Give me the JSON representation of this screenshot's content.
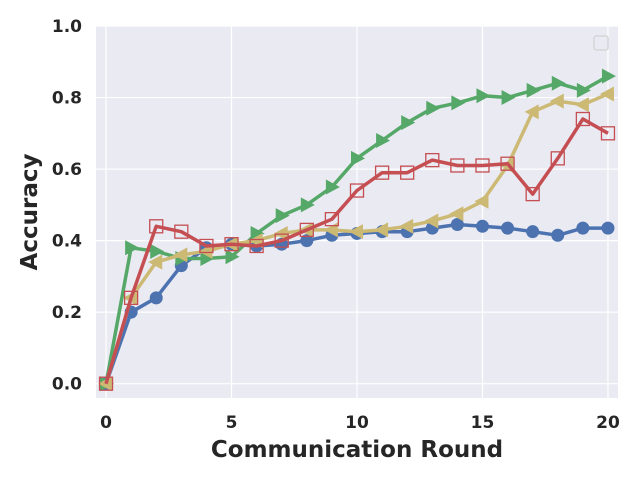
{
  "chart_data": {
    "type": "line",
    "xlabel": "Communication Round",
    "ylabel": "Accuracy",
    "xlim": [
      -0.4,
      20.4
    ],
    "ylim": [
      -0.04,
      1.0
    ],
    "xticks": [
      "0",
      "5",
      "10",
      "15",
      "20"
    ],
    "yticks": [
      "0.0",
      "0.2",
      "0.4",
      "0.6",
      "0.8",
      "1.0"
    ],
    "grid": true,
    "legend": "top-right (empty)",
    "x": [
      0,
      1,
      2,
      3,
      4,
      5,
      6,
      7,
      8,
      9,
      10,
      11,
      12,
      13,
      14,
      15,
      16,
      17,
      18,
      19,
      20
    ],
    "series": [
      {
        "color": "#4c72b0",
        "marker": "circle",
        "values": [
          0.0,
          0.2,
          0.24,
          0.33,
          0.38,
          0.39,
          0.385,
          0.39,
          0.4,
          0.415,
          0.42,
          0.425,
          0.425,
          0.435,
          0.445,
          0.44,
          0.435,
          0.425,
          0.415,
          0.435,
          0.435
        ]
      },
      {
        "color": "#55a868",
        "marker": "triangle-right",
        "values": [
          0.0,
          0.38,
          0.37,
          0.35,
          0.35,
          0.355,
          0.42,
          0.47,
          0.5,
          0.55,
          0.63,
          0.68,
          0.73,
          0.77,
          0.785,
          0.805,
          0.8,
          0.82,
          0.84,
          0.82,
          0.86
        ]
      },
      {
        "color": "#ccb974",
        "marker": "triangle-left",
        "values": [
          0.0,
          0.24,
          0.34,
          0.36,
          0.37,
          0.39,
          0.4,
          0.42,
          0.43,
          0.43,
          0.425,
          0.43,
          0.44,
          0.455,
          0.475,
          0.51,
          0.61,
          0.76,
          0.79,
          0.78,
          0.81
        ]
      },
      {
        "color": "#c44e52",
        "marker": "square-open",
        "values": [
          0.0,
          0.24,
          0.44,
          0.425,
          0.385,
          0.39,
          0.385,
          0.4,
          0.43,
          0.46,
          0.54,
          0.59,
          0.59,
          0.625,
          0.61,
          0.61,
          0.615,
          0.53,
          0.63,
          0.74,
          0.7
        ]
      }
    ]
  }
}
